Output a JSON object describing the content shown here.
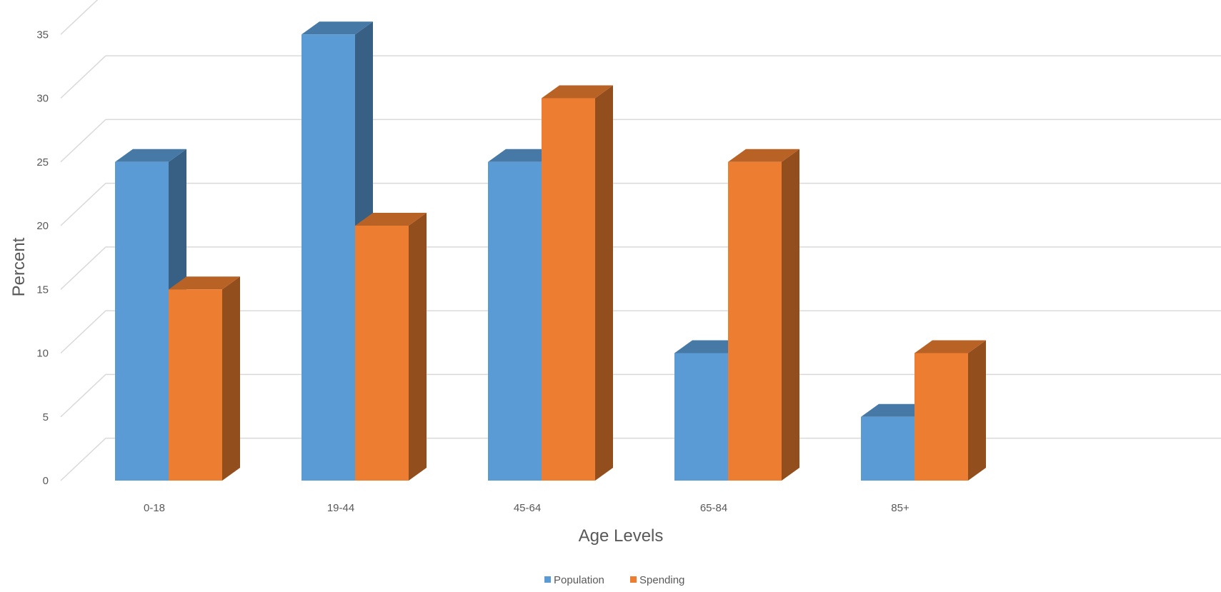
{
  "chart_data": {
    "type": "bar",
    "title": "",
    "xlabel": "Age Levels",
    "ylabel": "Percent",
    "categories": [
      "0-18",
      "19-44",
      "45-64",
      "65-84",
      "85+"
    ],
    "series": [
      {
        "name": "Population",
        "values": [
          25,
          35,
          25,
          10,
          5
        ],
        "color": "#5B9BD5"
      },
      {
        "name": "Spending",
        "values": [
          15,
          20,
          30,
          25,
          10
        ],
        "color": "#ED7D31"
      }
    ],
    "ylim": [
      0,
      35
    ],
    "yticks": [
      "0",
      "5",
      "10",
      "15",
      "20",
      "25",
      "30",
      "35"
    ],
    "grid": true,
    "legend": "bottom-center",
    "style": "3d-clustered-column"
  }
}
